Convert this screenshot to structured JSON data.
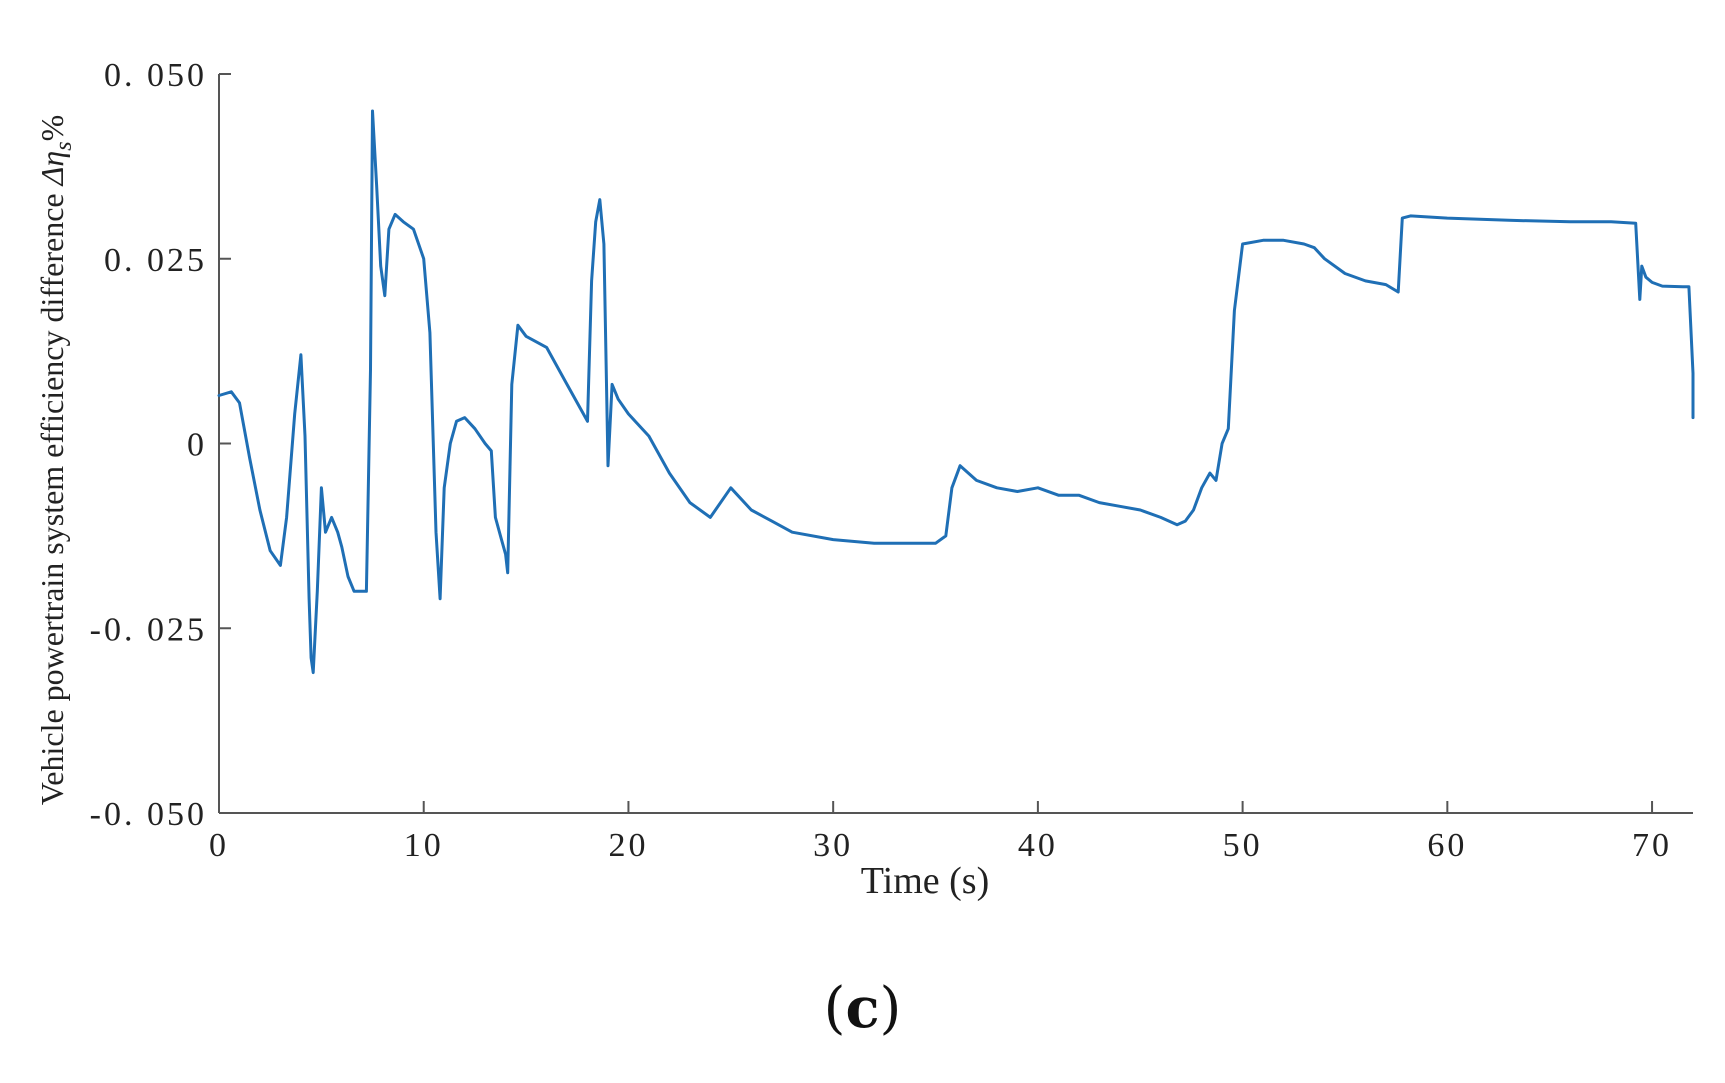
{
  "chart_data": {
    "type": "line",
    "xlabel": "Time (s)",
    "ylabel": "Vehicle powertrain system efficiency difference  Δη_s%",
    "ylabel_parts": {
      "text": "Vehicle powertrain system efficiency difference  ",
      "symbol": "Δη",
      "subscript": "s",
      "suffix": "%"
    },
    "xlim": [
      0,
      72
    ],
    "ylim": [
      -0.05,
      0.05
    ],
    "xticks": [
      0,
      10,
      20,
      30,
      40,
      50,
      60,
      70
    ],
    "xtick_labels": [
      "0",
      "10",
      "20",
      "30",
      "40",
      "50",
      "60",
      "70"
    ],
    "yticks": [
      0.05,
      0.025,
      0,
      -0.025,
      -0.05
    ],
    "ytick_labels": [
      "0. 050",
      "0. 025",
      "0",
      "-0. 025",
      "-0. 050"
    ],
    "grid": false,
    "series": [
      {
        "color": "#1f6fb5",
        "x": [
          0,
          0.6,
          1.0,
          1.5,
          2.0,
          2.5,
          3.0,
          3.3,
          3.7,
          4.0,
          4.2,
          4.4,
          4.5,
          4.6,
          4.8,
          5.0,
          5.2,
          5.5,
          5.8,
          6.0,
          6.3,
          6.6,
          6.9,
          7.2,
          7.4,
          7.5,
          7.7,
          7.9,
          8.1,
          8.3,
          8.6,
          9.0,
          9.5,
          10.0,
          10.3,
          10.6,
          10.8,
          11.0,
          11.3,
          11.6,
          12.0,
          12.5,
          13.0,
          13.3,
          13.5,
          13.8,
          14.0,
          14.1,
          14.3,
          14.6,
          15.0,
          16.0,
          17.0,
          17.8,
          18.0,
          18.2,
          18.4,
          18.6,
          18.8,
          19.0,
          19.2,
          19.5,
          20.0,
          21.0,
          22.0,
          23.0,
          24.0,
          25.0,
          26.0,
          27.0,
          28.0,
          30.0,
          32.0,
          34.0,
          35.0,
          35.5,
          35.8,
          36.2,
          37.0,
          38.0,
          39.0,
          40.0,
          41.0,
          42.0,
          43.0,
          44.0,
          45.0,
          46.0,
          46.8,
          47.2,
          47.6,
          48.0,
          48.4,
          48.7,
          49.0,
          49.3,
          49.6,
          50.0,
          51.0,
          52.0,
          53.0,
          53.5,
          54.0,
          55.0,
          56.0,
          57.0,
          57.6,
          57.8,
          58.2,
          60.0,
          63.0,
          66.0,
          68.0,
          69.2,
          69.4,
          69.5,
          69.7,
          70.0,
          70.5,
          71.5,
          71.8,
          72.0,
          72.0
        ],
        "y": [
          0.0065,
          0.007,
          0.0055,
          -0.002,
          -0.009,
          -0.0145,
          -0.0165,
          -0.01,
          0.004,
          0.012,
          0.001,
          -0.021,
          -0.029,
          -0.031,
          -0.02,
          -0.006,
          -0.012,
          -0.01,
          -0.012,
          -0.014,
          -0.018,
          -0.02,
          -0.02,
          -0.02,
          0.01,
          0.045,
          0.035,
          0.024,
          0.02,
          0.029,
          0.031,
          0.03,
          0.029,
          0.025,
          0.015,
          -0.012,
          -0.021,
          -0.006,
          0.0,
          0.003,
          0.0035,
          0.002,
          0.0,
          -0.001,
          -0.01,
          -0.013,
          -0.015,
          -0.0175,
          0.008,
          0.016,
          0.0145,
          0.013,
          0.008,
          0.004,
          0.003,
          0.022,
          0.03,
          0.033,
          0.027,
          -0.003,
          0.008,
          0.006,
          0.004,
          0.001,
          -0.004,
          -0.008,
          -0.01,
          -0.006,
          -0.009,
          -0.0105,
          -0.012,
          -0.013,
          -0.0135,
          -0.0135,
          -0.0135,
          -0.0125,
          -0.006,
          -0.003,
          -0.005,
          -0.006,
          -0.0065,
          -0.006,
          -0.007,
          -0.007,
          -0.008,
          -0.0085,
          -0.009,
          -0.01,
          -0.011,
          -0.0105,
          -0.009,
          -0.006,
          -0.004,
          -0.005,
          0.0,
          0.002,
          0.018,
          0.027,
          0.0275,
          0.0275,
          0.027,
          0.0265,
          0.025,
          0.023,
          0.022,
          0.0215,
          0.0205,
          0.0305,
          0.0308,
          0.0305,
          0.0302,
          0.03,
          0.03,
          0.0298,
          0.0195,
          0.024,
          0.0225,
          0.0218,
          0.0213,
          0.0212,
          0.0212,
          0.0095,
          0.0035
        ]
      }
    ]
  },
  "panel_label": {
    "open": "(",
    "letter": "c",
    "close": ")"
  }
}
